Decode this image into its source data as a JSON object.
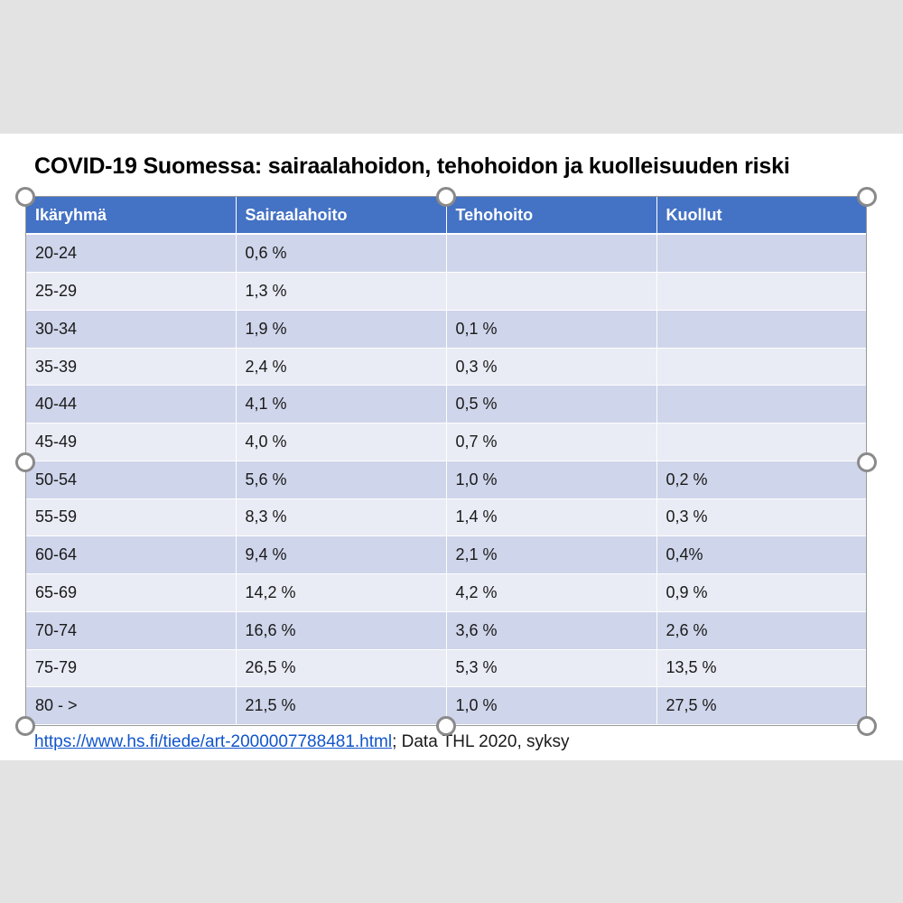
{
  "slide": {
    "title": "COVID-19 Suomessa: sairaalahoidon, tehohoidon ja kuolleisuuden riski",
    "table": {
      "headers": [
        "Ikäryhmä",
        "Sairaalahoito",
        "Tehohoito",
        "Kuollut"
      ],
      "rows": [
        [
          "20-24",
          "0,6 %",
          "",
          ""
        ],
        [
          "25-29",
          "1,3 %",
          "",
          ""
        ],
        [
          "30-34",
          "1,9 %",
          "0,1 %",
          ""
        ],
        [
          "35-39",
          "2,4 %",
          "0,3 %",
          ""
        ],
        [
          "40-44",
          "4,1 %",
          "0,5 %",
          ""
        ],
        [
          "45-49",
          "4,0 %",
          "0,7 %",
          ""
        ],
        [
          "50-54",
          "5,6 %",
          "1,0 %",
          "0,2 %"
        ],
        [
          "55-59",
          "8,3 %",
          "1,4 %",
          "0,3 %"
        ],
        [
          "60-64",
          "9,4 %",
          "2,1 %",
          "0,4%"
        ],
        [
          "65-69",
          "14,2 %",
          "4,2 %",
          "0,9 %"
        ],
        [
          "70-74",
          "16,6 %",
          "3,6 %",
          "2,6 %"
        ],
        [
          "75-79",
          "26,5 %",
          "5,3 %",
          "13,5 %"
        ],
        [
          "80 - >",
          "21,5 %",
          "1,0 %",
          "27,5 %"
        ]
      ]
    },
    "source_link": "https://www.hs.fi/tiede/art-2000007788481.html",
    "source_text": "; Data THL 2020, syksy"
  },
  "colors": {
    "header_bg": "#4472c4",
    "row_odd": "#cfd5ea",
    "row_even": "#e9ebf5"
  }
}
